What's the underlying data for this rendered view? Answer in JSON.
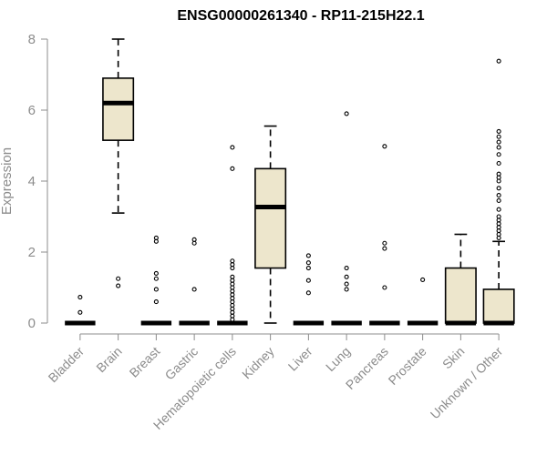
{
  "chart_data": {
    "type": "box",
    "title": "ENSG00000261340 - RP11-215H22.1",
    "ylabel": "Expression",
    "xlabel": "",
    "ylim": [
      0,
      8
    ],
    "yticks": [
      0,
      2,
      4,
      6,
      8
    ],
    "box_fill": "#ede6cc",
    "categories": [
      "Bladder",
      "Brain",
      "Breast",
      "Gastric",
      "Hematopoietic cells",
      "Kidney",
      "Liver",
      "Lung",
      "Pancreas",
      "Prostate",
      "Skin",
      "Unknown / Other"
    ],
    "boxes": [
      {
        "category": "Bladder",
        "q1": 0,
        "median": 0,
        "q3": 0,
        "whisker_low": 0,
        "whisker_high": 0,
        "outliers": [
          0.3,
          0.73
        ]
      },
      {
        "category": "Brain",
        "q1": 5.15,
        "median": 6.2,
        "q3": 6.9,
        "whisker_low": 3.1,
        "whisker_high": 8.0,
        "outliers": [
          1.05,
          1.25
        ]
      },
      {
        "category": "Breast",
        "q1": 0,
        "median": 0,
        "q3": 0,
        "whisker_low": 0,
        "whisker_high": 0,
        "outliers": [
          0.6,
          0.95,
          1.25,
          1.4,
          2.3,
          2.4
        ]
      },
      {
        "category": "Gastric",
        "q1": 0,
        "median": 0,
        "q3": 0,
        "whisker_low": 0,
        "whisker_high": 0,
        "outliers": [
          0.95,
          2.25,
          2.35
        ]
      },
      {
        "category": "Hematopoietic cells",
        "q1": 0,
        "median": 0,
        "q3": 0,
        "whisker_low": 0,
        "whisker_high": 0,
        "outliers": [
          0.1,
          0.2,
          0.3,
          0.4,
          0.5,
          0.6,
          0.7,
          0.8,
          0.9,
          1.0,
          1.1,
          1.2,
          1.3,
          1.55,
          1.65,
          1.75,
          4.35,
          4.95
        ]
      },
      {
        "category": "Kidney",
        "q1": 1.55,
        "median": 3.27,
        "q3": 4.35,
        "whisker_low": 0,
        "whisker_high": 5.55,
        "outliers": []
      },
      {
        "category": "Liver",
        "q1": 0,
        "median": 0,
        "q3": 0,
        "whisker_low": 0,
        "whisker_high": 0,
        "outliers": [
          0.85,
          1.2,
          1.55,
          1.7,
          1.9
        ]
      },
      {
        "category": "Lung",
        "q1": 0,
        "median": 0,
        "q3": 0,
        "whisker_low": 0,
        "whisker_high": 0,
        "outliers": [
          0.95,
          1.1,
          1.3,
          1.55,
          5.9
        ]
      },
      {
        "category": "Pancreas",
        "q1": 0,
        "median": 0,
        "q3": 0,
        "whisker_low": 0,
        "whisker_high": 0,
        "outliers": [
          1.0,
          2.1,
          2.25,
          4.98
        ]
      },
      {
        "category": "Prostate",
        "q1": 0,
        "median": 0,
        "q3": 0,
        "whisker_low": 0,
        "whisker_high": 0,
        "outliers": [
          1.22
        ]
      },
      {
        "category": "Skin",
        "q1": 0,
        "median": 0,
        "q3": 1.55,
        "whisker_low": 0,
        "whisker_high": 2.5,
        "outliers": []
      },
      {
        "category": "Unknown / Other",
        "q1": 0,
        "median": 0,
        "q3": 0.95,
        "whisker_low": 0,
        "whisker_high": 2.3,
        "outliers": [
          2.4,
          2.5,
          2.6,
          2.7,
          2.8,
          2.9,
          3.0,
          3.2,
          3.45,
          3.6,
          3.8,
          4.0,
          4.1,
          4.2,
          4.5,
          4.75,
          4.95,
          5.1,
          5.25,
          5.4,
          7.38
        ]
      }
    ]
  }
}
